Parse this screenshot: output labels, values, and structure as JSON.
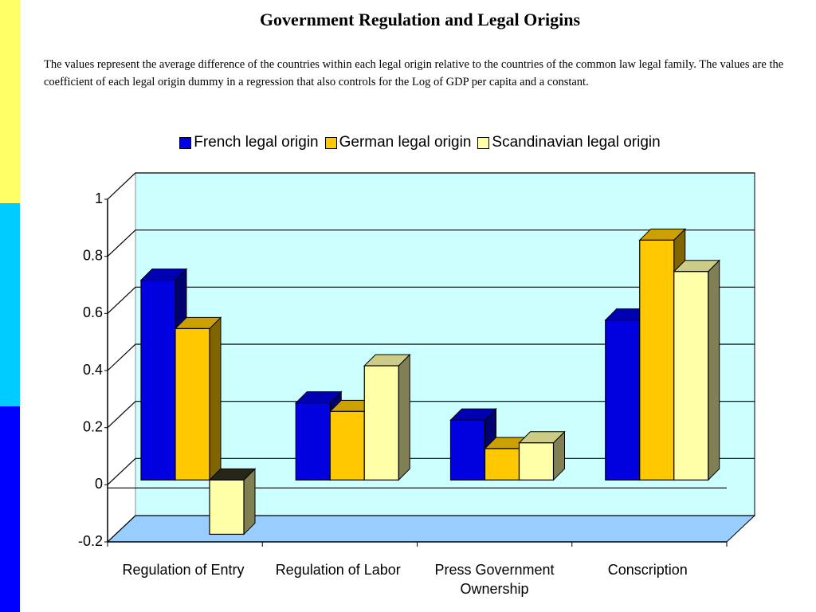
{
  "chart_data": {
    "type": "bar3d",
    "title": "Government Regulation and Legal Origins",
    "subtitle": "The values represent the average difference of the countries within each legal origin relative to the countries of the common law legal family.  The values are the coefficient of each legal origin dummy in a regression that also controls for the Log of GDP per capita and a constant.",
    "categories": [
      "Regulation of Entry",
      "Regulation of Labor",
      "Press Government Ownership",
      "Conscription"
    ],
    "series": [
      {
        "name": "French legal origin",
        "color": "#0000e0",
        "values": [
          0.7,
          0.27,
          0.21,
          0.56
        ]
      },
      {
        "name": "German legal origin",
        "color": "#ffc800",
        "values": [
          0.53,
          0.24,
          0.11,
          0.84
        ]
      },
      {
        "name": "Scandinavian legal origin",
        "color": "#ffffa8",
        "values": [
          -0.19,
          0.4,
          0.13,
          0.73
        ]
      }
    ],
    "ylim": [
      -0.2,
      1
    ],
    "yticks": [
      -0.2,
      0,
      0.2,
      0.4,
      0.6,
      0.8,
      1
    ],
    "grid": true,
    "legend": "top"
  }
}
